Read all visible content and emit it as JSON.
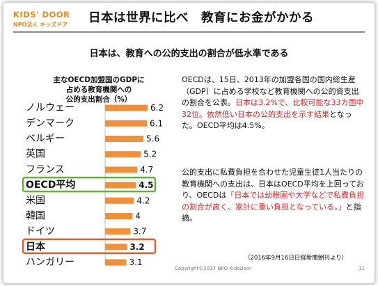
{
  "header": {
    "logo_main": "KIDS' DOOR",
    "logo_sub": "NPO法人 キッズドア",
    "title": "日本は世界に比べ　教育にお金がかかる"
  },
  "subtitle": "日本は、教育への公的支出の割合が低水準である",
  "chart_data": {
    "type": "bar",
    "title": [
      "主なOECD加盟国のGDPに",
      "占める教育機関への",
      "公的支出割合（%）"
    ],
    "categories": [
      "ノルウェー",
      "デンマーク",
      "ベルギー",
      "英国",
      "フランス",
      "OECD平均",
      "米国",
      "韓国",
      "ドイツ",
      "日本",
      "ハンガリー"
    ],
    "values": [
      6.2,
      6.1,
      5.6,
      5.2,
      4.7,
      4.5,
      4.2,
      4,
      3.7,
      3.2,
      3.1
    ],
    "value_labels": [
      "6.2",
      "6.1",
      "5.6",
      "5.2",
      "4.7",
      "4.5",
      "4.2",
      "4",
      "3.7",
      "3.2",
      "3.1"
    ],
    "highlight": {
      "OECD平均": "#5cb531",
      "日本": "#e35b2e"
    },
    "bar_color": "#f0903a",
    "xlim": [
      0,
      6.2
    ]
  },
  "text": {
    "p1_a": "OECDは、15日、2013年の加盟各国の国内総生産（GDP）に占める学校など教育機関への公的資支出の割合を公表。",
    "p1_red": "日本は3.2%で、比較可能な33カ国中32位。依然低い日本の公的支出を示す結果",
    "p1_b": "となった。OECD平均は4.5%。",
    "p2_a": "公的支出に私費負担を合わせた児童生徒1人当たりの教育機関への支出は、日本はOECD平均を上回っており、OECDは",
    "p2_red": "「日本では幼稚園や大学などで私費負担の割合が高く、家計に重い負担となっている。」",
    "p2_b": "と指摘。",
    "note": "（2016年9月16日日経新聞朝刊より）"
  },
  "footer": {
    "copyright": "Copyright©2017 NPO KidsDoor",
    "page": "11"
  }
}
